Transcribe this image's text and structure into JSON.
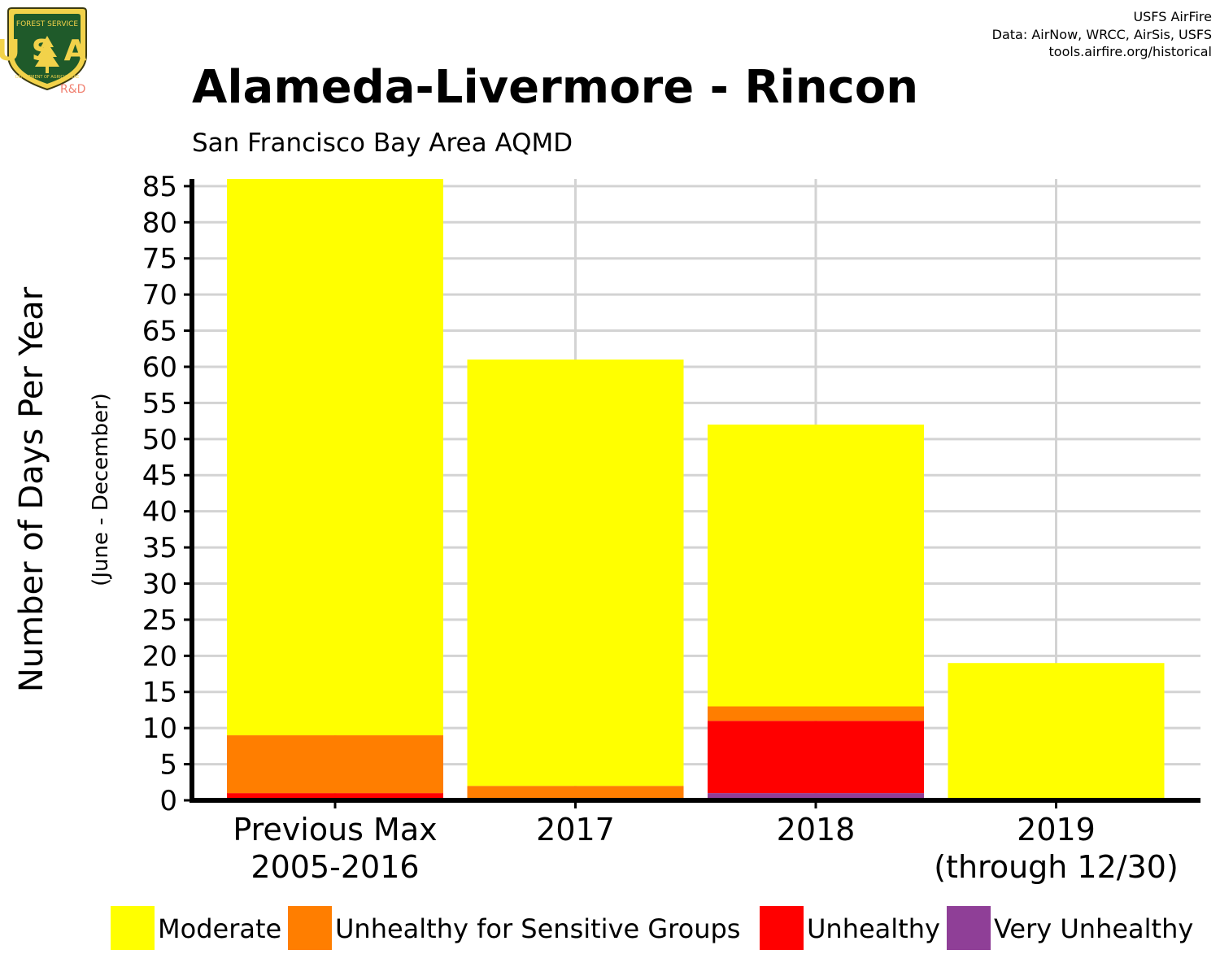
{
  "logo": {
    "top_text": "FOREST SERVICE",
    "initials": "USA",
    "bottom_text": "DEPARTMENT OF AGRICULTURE",
    "division": "R&D"
  },
  "credits": {
    "line1": "USFS AirFire",
    "line2": "Data: AirNow, WRCC, AirSis, USFS",
    "line3": "tools.airfire.org/historical"
  },
  "colors": {
    "moderate": "#FFFF00",
    "usg": "#FF7E00",
    "unhealthy": "#FF0000",
    "very_unhealthy": "#8F3F97",
    "grid": "#D3D3D3",
    "axis": "#000000"
  },
  "chart_data": {
    "type": "bar",
    "stacked": true,
    "title": "Alameda-Livermore - Rincon",
    "subtitle": "San Francisco Bay Area AQMD",
    "ylabel": "Number of Days Per Year",
    "ylabel_sub": "(June - December)",
    "xlabel": "",
    "ylim": [
      0,
      86
    ],
    "yticks": [
      0,
      5,
      10,
      15,
      20,
      25,
      30,
      35,
      40,
      45,
      50,
      55,
      60,
      65,
      70,
      75,
      80,
      85
    ],
    "grid": true,
    "legend_position": "bottom",
    "categories": [
      [
        "Previous Max",
        "2005-2016"
      ],
      [
        "2017"
      ],
      [
        "2018"
      ],
      [
        "2019",
        "(through 12/30)"
      ]
    ],
    "series": [
      {
        "name": "Very Unhealthy",
        "color": "#8F3F97",
        "values": [
          0,
          0,
          1,
          0
        ]
      },
      {
        "name": "Unhealthy",
        "color": "#FF0000",
        "values": [
          1,
          0,
          10,
          0
        ]
      },
      {
        "name": "Unhealthy for Sensitive Groups",
        "color": "#FF7E00",
        "values": [
          8,
          2,
          2,
          0
        ]
      },
      {
        "name": "Moderate",
        "color": "#FFFF00",
        "values": [
          77,
          59,
          39,
          19
        ]
      }
    ],
    "legend": [
      "Moderate",
      "Unhealthy for Sensitive Groups",
      "Unhealthy",
      "Very Unhealthy"
    ]
  }
}
